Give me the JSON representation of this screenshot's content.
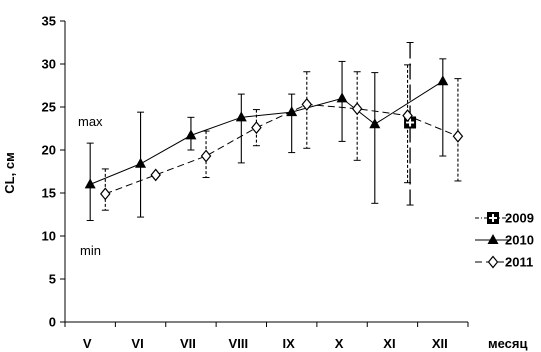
{
  "chart_data": {
    "type": "line",
    "title": "",
    "xlabel": "месяц",
    "ylabel": "CL, см",
    "ylim": [
      0,
      35
    ],
    "yticks": [
      0,
      5,
      10,
      15,
      20,
      25,
      30,
      35
    ],
    "categories": [
      "V",
      "VI",
      "VII",
      "VIII",
      "IX",
      "X",
      "XI",
      "XII"
    ],
    "grid": false,
    "legend_position": "right",
    "annotations": [
      "max",
      "min"
    ],
    "series": [
      {
        "name": "2009",
        "marker": "square-cross",
        "line": "dash-dot",
        "color": "#000000",
        "points": [
          {
            "x": 6.35,
            "y": 23.2,
            "min": 13.6,
            "max": 32.5
          }
        ]
      },
      {
        "name": "2010",
        "marker": "triangle",
        "line": "solid",
        "color": "#000000",
        "points": [
          {
            "x": 0,
            "y": 16.0,
            "min": 11.8,
            "max": 20.8
          },
          {
            "x": 1,
            "y": 18.4,
            "min": 12.2,
            "max": 24.4
          },
          {
            "x": 2,
            "y": 21.7,
            "min": 20.0,
            "max": 23.8
          },
          {
            "x": 3,
            "y": 23.8,
            "min": 18.5,
            "max": 26.5
          },
          {
            "x": 4,
            "y": 24.4,
            "min": 19.7,
            "max": 26.5
          },
          {
            "x": 5,
            "y": 26.0,
            "min": 21.0,
            "max": 30.3
          },
          {
            "x": 5.65,
            "y": 23.0,
            "min": 13.8,
            "max": 29.0
          },
          {
            "x": 7,
            "y": 28.0,
            "min": 19.3,
            "max": 30.6
          }
        ]
      },
      {
        "name": "2011",
        "marker": "diamond",
        "line": "dashed",
        "color": "#000000",
        "points": [
          {
            "x": 0.3,
            "y": 14.9,
            "min": 13.0,
            "max": 17.8
          },
          {
            "x": 1.3,
            "y": 17.1,
            "min": null,
            "max": null
          },
          {
            "x": 2.3,
            "y": 19.3,
            "min": 16.8,
            "max": 22.2
          },
          {
            "x": 3.3,
            "y": 22.6,
            "min": 20.5,
            "max": 24.7
          },
          {
            "x": 4.3,
            "y": 25.3,
            "min": 20.2,
            "max": 29.1
          },
          {
            "x": 5.3,
            "y": 24.8,
            "min": 18.8,
            "max": 29.1
          },
          {
            "x": 6.3,
            "y": 24.0,
            "min": 16.2,
            "max": 29.9
          },
          {
            "x": 7.3,
            "y": 21.6,
            "min": 16.4,
            "max": 28.3
          }
        ]
      }
    ]
  }
}
